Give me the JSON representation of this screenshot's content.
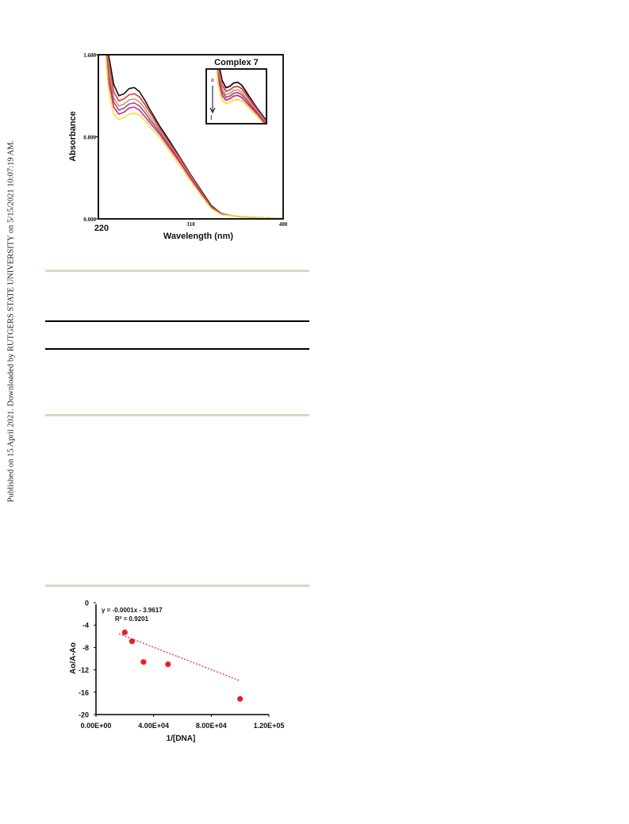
{
  "sidebar_note": "Published on 15 April 2021. Downloaded by RUTGERS STATE UNIVERSITY on 5/15/2021 10:07:19 AM.",
  "chart_data": [
    {
      "type": "line",
      "title": "Complex 7",
      "xlabel": "Wavelength (nm)",
      "ylabel": "Absorbance",
      "xlim": [
        220,
        400
      ],
      "ylim": [
        0,
        1.6
      ],
      "xticks": [
        "220",
        "310",
        "400"
      ],
      "yticks": [
        "0.000",
        "0.800",
        "1.600"
      ],
      "inset_labels": [
        "a",
        "f"
      ],
      "grid": false,
      "colors": [
        "#111111",
        "#e8363f",
        "#c89a6a",
        "#8c5a8c",
        "#e0247a",
        "#f0e23a"
      ],
      "series": [
        {
          "x": [
            224,
            230,
            235,
            240,
            245,
            250,
            255,
            260,
            265,
            270,
            280,
            290,
            300,
            310,
            320,
            330,
            340,
            350,
            360,
            370,
            380,
            390,
            400
          ],
          "y": [
            2.0,
            1.6,
            1.31,
            1.2,
            1.22,
            1.27,
            1.28,
            1.24,
            1.16,
            1.07,
            0.9,
            0.75,
            0.59,
            0.43,
            0.28,
            0.13,
            0.05,
            0.03,
            0.02,
            0.015,
            0.01,
            0.005,
            0.005
          ]
        },
        {
          "x": [
            224,
            230,
            235,
            240,
            245,
            250,
            255,
            260,
            265,
            270,
            280,
            290,
            300,
            310,
            320,
            330,
            340,
            350,
            360,
            370,
            380,
            390,
            400
          ],
          "y": [
            2.0,
            1.52,
            1.24,
            1.15,
            1.17,
            1.21,
            1.22,
            1.19,
            1.12,
            1.04,
            0.88,
            0.73,
            0.58,
            0.42,
            0.27,
            0.12,
            0.05,
            0.03,
            0.02,
            0.015,
            0.01,
            0.005,
            0.005
          ]
        },
        {
          "x": [
            224,
            230,
            235,
            240,
            245,
            250,
            255,
            260,
            265,
            270,
            280,
            290,
            300,
            310,
            320,
            330,
            340,
            350,
            360,
            370,
            380,
            390,
            400
          ],
          "y": [
            2.0,
            1.46,
            1.18,
            1.1,
            1.12,
            1.16,
            1.17,
            1.14,
            1.08,
            1.0,
            0.86,
            0.71,
            0.56,
            0.41,
            0.26,
            0.12,
            0.05,
            0.03,
            0.02,
            0.015,
            0.01,
            0.005,
            0.005
          ]
        },
        {
          "x": [
            224,
            230,
            235,
            240,
            245,
            250,
            255,
            260,
            265,
            270,
            280,
            290,
            300,
            310,
            320,
            330,
            340,
            350,
            360,
            370,
            380,
            390,
            400
          ],
          "y": [
            2.0,
            1.4,
            1.14,
            1.06,
            1.08,
            1.12,
            1.13,
            1.1,
            1.04,
            0.97,
            0.84,
            0.7,
            0.55,
            0.4,
            0.26,
            0.12,
            0.05,
            0.03,
            0.02,
            0.015,
            0.01,
            0.005,
            0.005
          ]
        },
        {
          "x": [
            224,
            230,
            235,
            240,
            245,
            250,
            255,
            260,
            265,
            270,
            280,
            290,
            300,
            310,
            320,
            330,
            340,
            350,
            360,
            370,
            380,
            390,
            400
          ],
          "y": [
            2.0,
            1.34,
            1.09,
            1.02,
            1.04,
            1.08,
            1.09,
            1.06,
            1.0,
            0.94,
            0.82,
            0.68,
            0.54,
            0.39,
            0.25,
            0.11,
            0.05,
            0.03,
            0.02,
            0.015,
            0.01,
            0.005,
            0.005
          ]
        },
        {
          "x": [
            224,
            230,
            235,
            240,
            245,
            250,
            255,
            260,
            265,
            270,
            280,
            290,
            300,
            310,
            320,
            330,
            340,
            350,
            360,
            370,
            380,
            390,
            400
          ],
          "y": [
            2.0,
            1.25,
            1.02,
            0.97,
            0.99,
            1.02,
            1.03,
            1.01,
            0.96,
            0.9,
            0.79,
            0.65,
            0.51,
            0.37,
            0.23,
            0.1,
            0.04,
            0.03,
            0.02,
            0.015,
            0.01,
            0.005,
            0.005
          ]
        }
      ]
    },
    {
      "type": "scatter",
      "title": "",
      "xlabel": "1/[DNA]",
      "ylabel": "Ao/A-Ao",
      "xlim": [
        0,
        120000
      ],
      "ylim": [
        -20,
        0
      ],
      "xticks": [
        0,
        40000,
        80000,
        120000
      ],
      "xtick_labels": [
        "0.00E+00",
        "4.00E+04",
        "8.00E+04",
        "1.20E+05"
      ],
      "yticks": [
        0,
        -4,
        -8,
        -12,
        -16,
        -20
      ],
      "equation": "y = -0.0001x - 3.9617",
      "r_squared": "R² = 0.9201",
      "marker_color": "#e8202a",
      "trendline": {
        "x": [
          16000,
          100000
        ],
        "y": [
          -5.56,
          -13.96
        ]
      },
      "x": [
        20000,
        25000,
        33000,
        50000,
        100000
      ],
      "y": [
        -5.3,
        -6.9,
        -10.6,
        -11.0,
        -17.2
      ]
    }
  ]
}
